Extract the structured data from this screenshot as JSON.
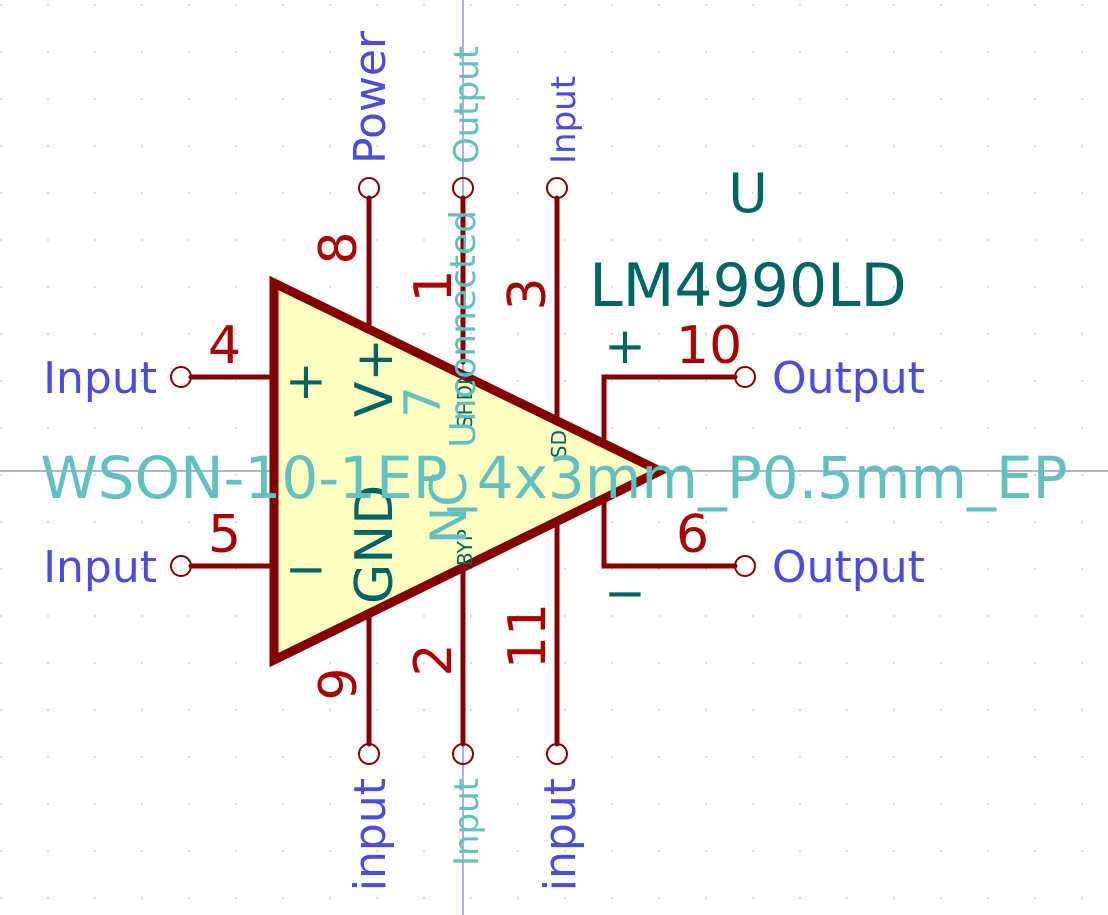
{
  "symbol": {
    "reference": "U",
    "value": "LM4990LD",
    "footprint": "WSON-10-1EP_4x3mm_P0.5mm_EP",
    "pin_types": {
      "power_in": "Power",
      "input": "Input",
      "output": "Output",
      "unconnected": "Unconnected",
      "passive_input": "input"
    },
    "body_labels": {
      "vplus": "V+",
      "gnd": "GND",
      "nc": "NC",
      "shdn": "SHDN",
      "bypass": "BYP",
      "sd": "SD",
      "plus_in": "+",
      "minus_in": "−",
      "plus_out": "+",
      "minus_out": "−"
    },
    "pins": {
      "p1": "1",
      "p2": "2",
      "p3": "3",
      "p4": "4",
      "p5": "5",
      "p6": "6",
      "p7": "7",
      "p8": "8",
      "p9": "9",
      "p10": "10",
      "p11": "11"
    }
  },
  "colors": {
    "line": "#840000",
    "body_fill": "#ffffc2",
    "pin_number": "#a90000",
    "pin_type": "#4b4bdc",
    "field": "#006464",
    "hidden_field": "#62c0c0",
    "grid": "#c8c8c8",
    "crosshair": "#6464a0"
  }
}
